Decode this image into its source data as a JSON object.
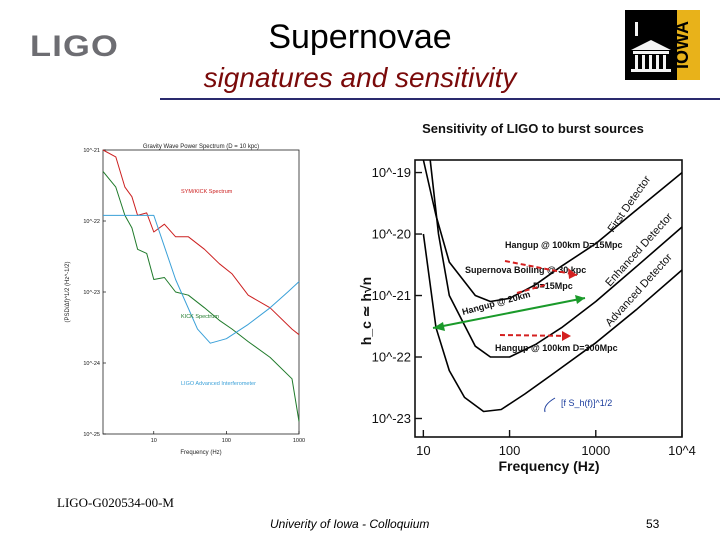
{
  "slide": {
    "logo_text": "LIGO",
    "title": "Supernovae",
    "subtitle": "signatures and sensitivity",
    "footer_id": "LIGO-G020534-00-M",
    "footer_center": "Univerity of Iowa - Colloquium",
    "page_number": "53",
    "iowa_logo_text": "IOWA"
  },
  "chart_data": [
    {
      "type": "line",
      "title": "Gravity Wave Power Spectrum (D = 10 kpc)",
      "xlabel": "Frequency (Hz)",
      "ylabel": "(PSD/Δf)^1/2 (Hz^-1/2)",
      "xscale": "log",
      "yscale": "log",
      "xticks": [
        "10",
        "100",
        "1000"
      ],
      "yticks": [
        "10^-21",
        "10^-22",
        "10^-23",
        "10^-24",
        "10^-25"
      ],
      "xlim": [
        2,
        1000
      ],
      "ylim": [
        1e-25,
        1e-21
      ],
      "annotations": [
        "SYM/KICK Spectrum",
        "KICK Spectrum",
        "LIGO Advanced Interferometer"
      ],
      "series": [
        {
          "name": "SYM/KICK Spectrum",
          "color": "#cc2020",
          "x": [
            2,
            3,
            4,
            5,
            6,
            8,
            10,
            14,
            20,
            30,
            50,
            80,
            120,
            200,
            400,
            800,
            1000
          ],
          "y": [
            1.4e-21,
            8e-22,
            3e-22,
            2.2e-22,
            1.2e-22,
            1.3e-22,
            7e-23,
            9e-23,
            6e-23,
            6e-23,
            4e-23,
            2.5e-23,
            1.8e-23,
            9e-24,
            6e-24,
            3e-24,
            2.5e-24
          ]
        },
        {
          "name": "KICK Spectrum",
          "color": "#1f7a2a",
          "x": [
            2,
            3,
            4,
            5,
            6,
            8,
            10,
            14,
            20,
            30,
            50,
            80,
            120,
            200,
            400,
            800,
            1000
          ],
          "y": [
            5e-22,
            3e-22,
            1.2e-22,
            8e-23,
            4e-23,
            3.5e-23,
            1.5e-23,
            1.6e-23,
            1e-23,
            9e-24,
            6e-24,
            4e-24,
            3e-24,
            2e-24,
            1.2e-24,
            6e-25,
            1.5e-25
          ]
        },
        {
          "name": "LIGO Advanced Interferometer",
          "color": "#3aa0d8",
          "x": [
            2,
            10,
            20,
            40,
            60,
            100,
            200,
            400,
            700,
            1000
          ],
          "y": [
            1.2e-22,
            1.2e-22,
            1.5e-23,
            3e-24,
            1.9e-24,
            2.2e-24,
            3.5e-24,
            6e-24,
            1e-23,
            1.4e-23
          ]
        }
      ]
    },
    {
      "type": "line",
      "title": "Sensitivity of LIGO to burst sources",
      "xlabel": "Frequency (Hz)",
      "ylabel": "h_c ≃ h√n",
      "xscale": "log",
      "yscale": "log",
      "xticks": [
        "10",
        "100",
        "1000",
        "10^4"
      ],
      "yticks": [
        "10^-19",
        "10^-20",
        "10^-21",
        "10^-22",
        "10^-23"
      ],
      "xlim": [
        8,
        10000
      ],
      "ylim": [
        5e-24,
        1.6e-19
      ],
      "curve_labels": [
        "First Detector",
        "Enhanced Detector",
        "Advanced Detector"
      ],
      "annotations": [
        "Hangup @ 100km D=15Mpc",
        "Supernova Boiling @ 30 kpc",
        "D=15Mpc",
        "Hangup @ 20km",
        "Hangup @ 100km D=300Mpc",
        "[f S_h(f)]^1/2"
      ],
      "series": [
        {
          "name": "First Detector",
          "color": "#000000",
          "x": [
            10,
            14,
            20,
            40,
            60,
            100,
            200,
            400,
            1000,
            3000,
            10000
          ],
          "y": [
            1.6e-19,
            2e-20,
            3.5e-21,
            1e-21,
            8e-22,
            9e-22,
            1.5e-21,
            3e-21,
            7e-21,
            2.5e-20,
            1e-19
          ]
        },
        {
          "name": "Enhanced Detector",
          "color": "#000000",
          "x": [
            12,
            15,
            20,
            40,
            60,
            100,
            200,
            400,
            1000,
            3000,
            10000
          ],
          "y": [
            1.6e-19,
            1e-20,
            1e-21,
            1.5e-22,
            1e-22,
            1e-22,
            1.6e-22,
            3e-22,
            8e-22,
            3e-21,
            1.3e-20
          ]
        },
        {
          "name": "Advanced Detector",
          "color": "#000000",
          "x": [
            10,
            14,
            20,
            30,
            50,
            80,
            150,
            300,
            1000,
            3000,
            10000
          ],
          "y": [
            1e-20,
            3e-22,
            6e-23,
            2.2e-23,
            1.3e-23,
            1.4e-23,
            2.5e-23,
            5e-23,
            1.7e-22,
            6e-22,
            2.6e-21
          ]
        }
      ]
    }
  ]
}
